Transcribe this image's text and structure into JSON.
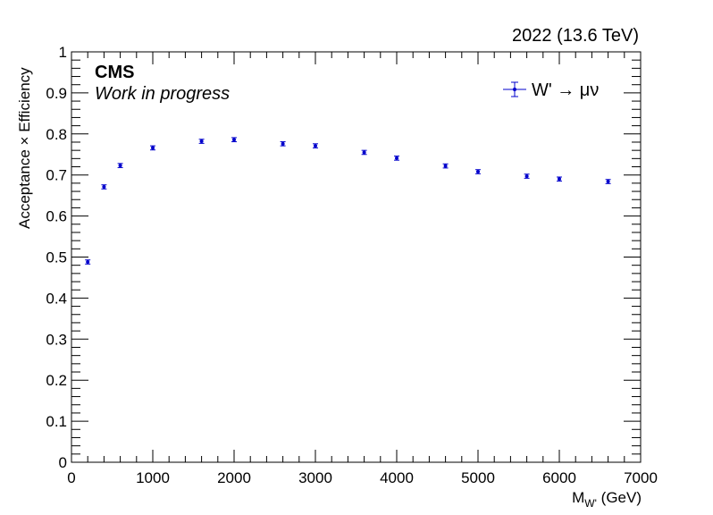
{
  "header": {
    "lumi_label": "2022 (13.6 TeV)",
    "experiment": "CMS",
    "status": "Work in progress"
  },
  "chart_data": {
    "type": "scatter",
    "xlabel_main": "M",
    "xlabel_sub": "W'",
    "xlabel_unit": "(GeV)",
    "ylabel": "Acceptance × Efficiency",
    "xlim": [
      0,
      7000
    ],
    "ylim": [
      0,
      1
    ],
    "x_ticks": [
      0,
      1000,
      2000,
      3000,
      4000,
      5000,
      6000,
      7000
    ],
    "x_tick_labels": [
      "0",
      "1000",
      "2000",
      "3000",
      "4000",
      "5000",
      "6000",
      "7000"
    ],
    "y_ticks": [
      0,
      0.1,
      0.2,
      0.3,
      0.4,
      0.5,
      0.6,
      0.7,
      0.8,
      0.9,
      1
    ],
    "y_tick_labels": [
      "0",
      "0.1",
      "0.2",
      "0.3",
      "0.4",
      "0.5",
      "0.6",
      "0.7",
      "0.8",
      "0.9",
      "1"
    ],
    "grid": false,
    "legend_position": "top-right",
    "series": [
      {
        "name": "W' → μν",
        "color": "#0000cc",
        "x": [
          200,
          400,
          600,
          1000,
          1600,
          2000,
          2600,
          3000,
          3600,
          4000,
          4600,
          5000,
          5600,
          6000,
          6600
        ],
        "y": [
          0.488,
          0.671,
          0.723,
          0.766,
          0.782,
          0.786,
          0.776,
          0.771,
          0.755,
          0.741,
          0.722,
          0.708,
          0.697,
          0.69,
          0.684
        ],
        "err": [
          0.005,
          0.005,
          0.005,
          0.005,
          0.005,
          0.005,
          0.005,
          0.005,
          0.005,
          0.005,
          0.005,
          0.005,
          0.005,
          0.005,
          0.005
        ]
      }
    ]
  }
}
